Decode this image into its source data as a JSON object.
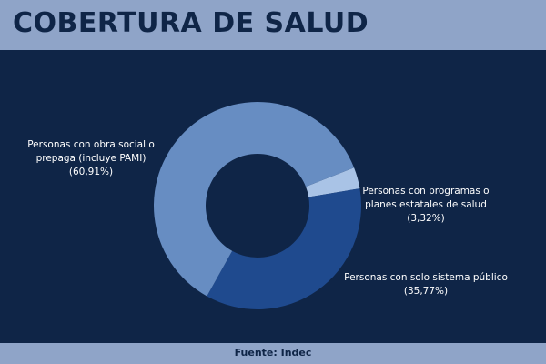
{
  "header": {
    "title": "COBERTURA DE SALUD"
  },
  "footer": {
    "source": "Fuente: Indec"
  },
  "chart_data": {
    "type": "pie",
    "donut": true,
    "title": "COBERTURA DE SALUD",
    "slices": [
      {
        "label_lines": [
          "Personas con programas o",
          "planes estatales de salud",
          "(3,32%)"
        ],
        "value": 3.32,
        "color": "#a9c3e6"
      },
      {
        "label_lines": [
          "Personas con solo sistema público",
          "(35,77%)"
        ],
        "value": 35.77,
        "color": "#1f4a8e"
      },
      {
        "label_lines": [
          "Personas con obra social o",
          "prepaga (incluye PAMI)",
          "(60,91%)"
        ],
        "value": 60.91,
        "color": "#678dc2"
      }
    ]
  }
}
